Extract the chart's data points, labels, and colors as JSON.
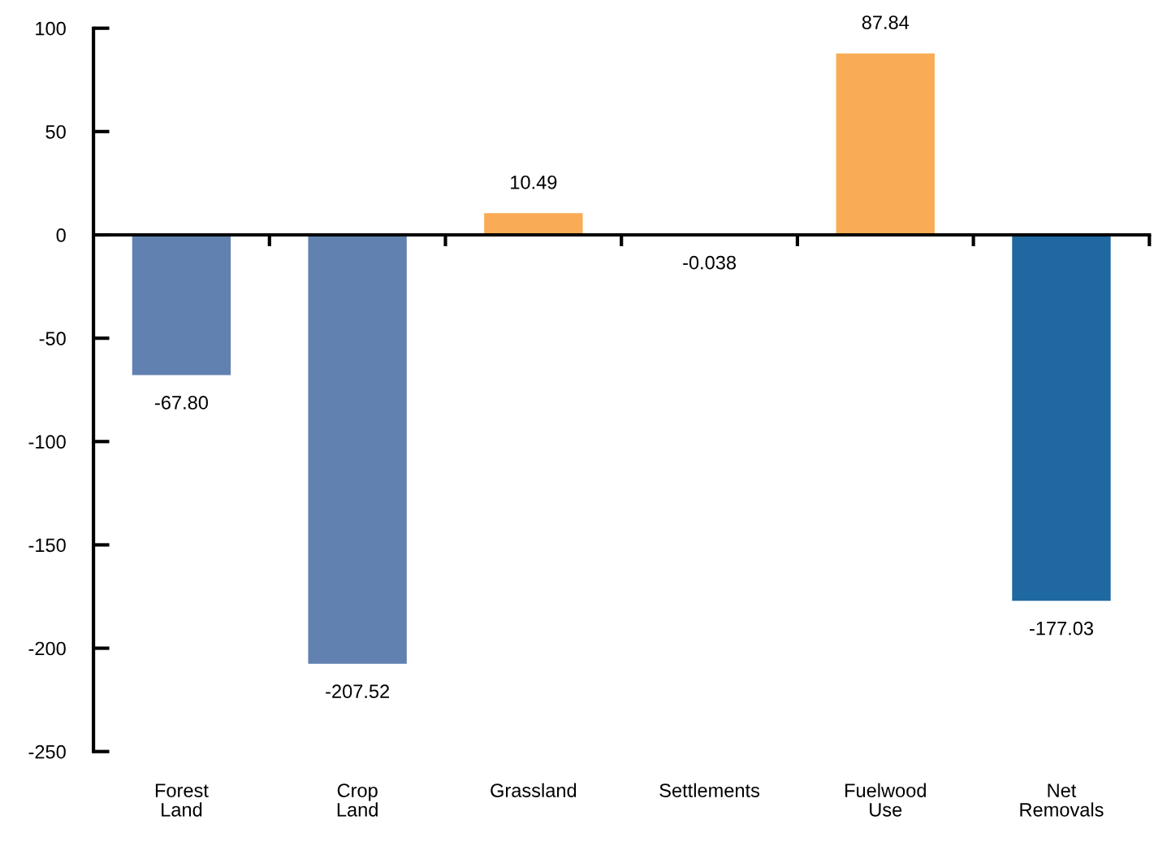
{
  "chart_data": {
    "type": "bar",
    "categories": [
      "Forest\nLand",
      "Crop\nLand",
      "Grassland",
      "Settlements",
      "Fuelwood\nUse",
      "Net\nRemovals"
    ],
    "values": [
      -67.8,
      -207.52,
      10.49,
      -0.038,
      87.84,
      -177.03
    ],
    "value_labels": [
      "-67.80",
      "-207.52",
      "10.49",
      "-0.038",
      "87.84",
      "-177.03"
    ],
    "colors": [
      "#6181b1",
      "#6181b1",
      "#f9ab55",
      "#6181b1",
      "#f9ab55",
      "#1f68a0"
    ],
    "ylim": [
      -250,
      100
    ],
    "yticks": [
      -250,
      -200,
      -150,
      -100,
      -50,
      0,
      50,
      100
    ],
    "legend": false
  }
}
